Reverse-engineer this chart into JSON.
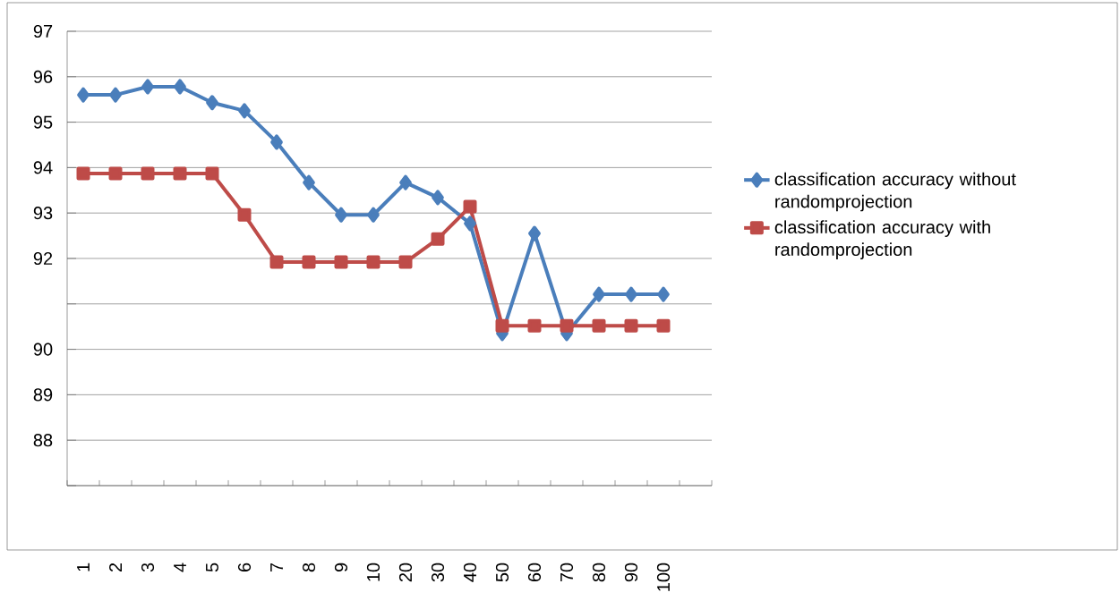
{
  "chart_data": {
    "type": "line",
    "categories": [
      "1",
      "2",
      "3",
      "4",
      "5",
      "6",
      "7",
      "8",
      "9",
      "10",
      "20",
      "30",
      "40",
      "50",
      "60",
      "70",
      "80",
      "90",
      "100",
      null
    ],
    "series": [
      {
        "name": "classification accuracy without randomprojection",
        "color": "#4a7ebb",
        "marker": "diamond",
        "values": [
          95.6,
          95.6,
          95.78,
          95.78,
          95.43,
          95.25,
          94.56,
          93.67,
          92.96,
          92.96,
          93.67,
          93.34,
          92.77,
          90.35,
          92.55,
          90.35,
          91.21,
          91.21,
          91.21,
          null
        ]
      },
      {
        "name": "classification accuracy with randomprojection",
        "color": "#be4b48",
        "marker": "square",
        "values": [
          93.87,
          93.87,
          93.87,
          93.87,
          93.87,
          92.96,
          91.92,
          91.92,
          91.92,
          91.92,
          91.92,
          92.43,
          93.14,
          90.52,
          90.52,
          90.52,
          90.52,
          90.52,
          90.52,
          null
        ]
      }
    ],
    "ylim": [
      87,
      97
    ],
    "yticks": [
      97,
      96,
      95,
      94,
      93,
      92,
      {
        "value": 91,
        "label": null
      },
      90,
      89,
      88,
      {
        "value": 87,
        "label": null
      }
    ],
    "grid": "y",
    "legend": "right",
    "line_style": "solid"
  }
}
